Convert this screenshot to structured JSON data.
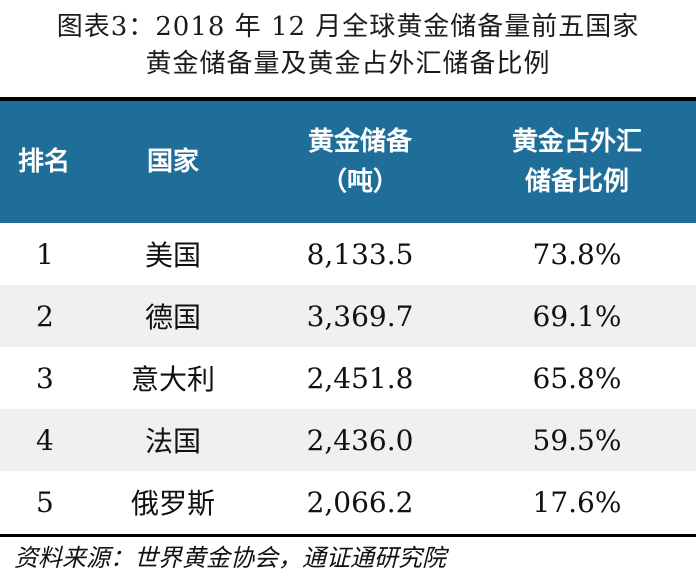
{
  "title": {
    "line1": "图表3：2018 年 12 月全球黄金储备量前五国家",
    "line2": "黄金储备量及黄金占外汇储备比例"
  },
  "table": {
    "headers": {
      "rank": "排名",
      "country": "国家",
      "reserves_line1": "黄金储备",
      "reserves_line2": "（吨）",
      "share_line1": "黄金占外汇",
      "share_line2": "储备比例"
    },
    "rows": [
      {
        "rank": "1",
        "country": "美国",
        "reserves": "8,133.5",
        "share": "73.8%"
      },
      {
        "rank": "2",
        "country": "德国",
        "reserves": "3,369.7",
        "share": "69.1%"
      },
      {
        "rank": "3",
        "country": "意大利",
        "reserves": "2,451.8",
        "share": "65.8%"
      },
      {
        "rank": "4",
        "country": "法国",
        "reserves": "2,436.0",
        "share": "59.5%"
      },
      {
        "rank": "5",
        "country": "俄罗斯",
        "reserves": "2,066.2",
        "share": "17.6%"
      }
    ]
  },
  "source": "资料来源：世界黄金协会，通证通研究院",
  "colors": {
    "header_bg": "#1e6e99",
    "header_text": "#ffffff",
    "alt_row_bg": "#f0f0f0"
  }
}
